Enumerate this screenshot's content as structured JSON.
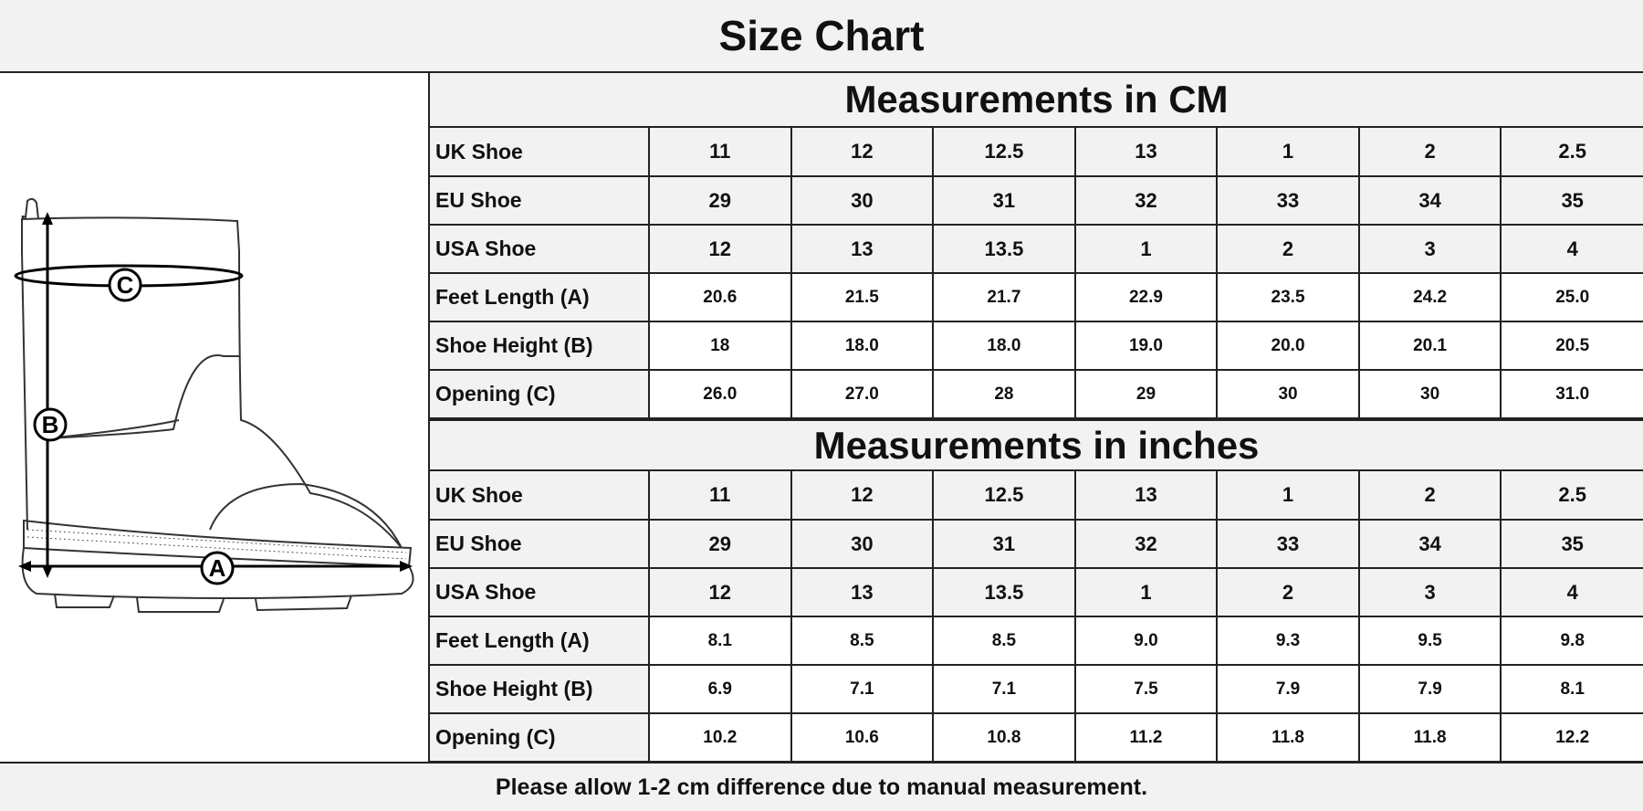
{
  "title": "Size Chart",
  "diagram": {
    "labels": {
      "a": "A",
      "b": "B",
      "c": "C"
    }
  },
  "tables": [
    {
      "heading": "Measurements in CM",
      "rows": [
        {
          "label": "UK Shoe",
          "kind": "size",
          "values": [
            "11",
            "12",
            "12.5",
            "13",
            "1",
            "2",
            "2.5"
          ]
        },
        {
          "label": "EU Shoe",
          "kind": "size",
          "values": [
            "29",
            "30",
            "31",
            "32",
            "33",
            "34",
            "35"
          ]
        },
        {
          "label": "USA Shoe",
          "kind": "size",
          "values": [
            "12",
            "13",
            "13.5",
            "1",
            "2",
            "3",
            "4"
          ]
        },
        {
          "label": "Feet Length (A)",
          "kind": "meas",
          "values": [
            "20.6",
            "21.5",
            "21.7",
            "22.9",
            "23.5",
            "24.2",
            "25.0"
          ]
        },
        {
          "label": "Shoe Height (B)",
          "kind": "meas",
          "values": [
            "18",
            "18.0",
            "18.0",
            "19.0",
            "20.0",
            "20.1",
            "20.5"
          ]
        },
        {
          "label": "Opening (C)",
          "kind": "meas",
          "values": [
            "26.0",
            "27.0",
            "28",
            "29",
            "30",
            "30",
            "31.0"
          ]
        }
      ]
    },
    {
      "heading": "Measurements in inches",
      "rows": [
        {
          "label": "UK Shoe",
          "kind": "size",
          "values": [
            "11",
            "12",
            "12.5",
            "13",
            "1",
            "2",
            "2.5"
          ]
        },
        {
          "label": "EU Shoe",
          "kind": "size",
          "values": [
            "29",
            "30",
            "31",
            "32",
            "33",
            "34",
            "35"
          ]
        },
        {
          "label": "USA Shoe",
          "kind": "size",
          "values": [
            "12",
            "13",
            "13.5",
            "1",
            "2",
            "3",
            "4"
          ]
        },
        {
          "label": "Feet Length (A)",
          "kind": "meas",
          "values": [
            "8.1",
            "8.5",
            "8.5",
            "9.0",
            "9.3",
            "9.5",
            "9.8"
          ]
        },
        {
          "label": "Shoe Height (B)",
          "kind": "meas",
          "values": [
            "6.9",
            "7.1",
            "7.1",
            "7.5",
            "7.9",
            "7.9",
            "8.1"
          ]
        },
        {
          "label": "Opening (C)",
          "kind": "meas",
          "values": [
            "10.2",
            "10.6",
            "10.8",
            "11.2",
            "11.8",
            "11.8",
            "12.2"
          ]
        }
      ]
    }
  ],
  "footer": "Please allow 1-2 cm difference due to manual measurement."
}
